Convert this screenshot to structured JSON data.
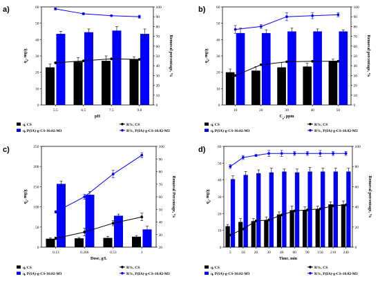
{
  "chart_data": [
    {
      "type": "bar",
      "panel": "a)",
      "categories": [
        "5.5",
        "6.5",
        "7.5",
        "9.8"
      ],
      "xlabel": "pH",
      "ylabel": "q_e, mg/g",
      "ylabel_right": "Removal percentage, %",
      "ylim": [
        0,
        60
      ],
      "ylim_right": [
        0,
        100
      ],
      "yticks": [
        "0",
        "10",
        "20",
        "30",
        "40",
        "50",
        "60"
      ],
      "yticks_right": [
        "0",
        "10",
        "20",
        "30",
        "40",
        "50",
        "60",
        "70",
        "80",
        "90",
        "100"
      ],
      "series": [
        {
          "name": "q, CS",
          "kind": "bar",
          "color": "#000000",
          "axis": "left",
          "values": [
            23,
            26.5,
            27,
            28
          ],
          "errors": [
            2,
            2.5,
            3,
            1.5
          ]
        },
        {
          "name": "q, P(IA)-g-CS-10.02-M3",
          "kind": "bar",
          "color": "#0000ff",
          "axis": "left",
          "values": [
            43.5,
            44.5,
            45.5,
            43.5
          ],
          "errors": [
            1.5,
            2,
            2.5,
            3
          ]
        },
        {
          "name": "R%, CS",
          "kind": "line",
          "color": "#000000",
          "axis": "right",
          "values": [
            43,
            45,
            47,
            46.5
          ]
        },
        {
          "name": "R%, P(IA)-g-CS-10.02-M3",
          "kind": "line",
          "color": "#0000ff",
          "axis": "right",
          "values": [
            98,
            93,
            91,
            90
          ],
          "errors": [
            1,
            1,
            0.5,
            1.5
          ]
        }
      ],
      "legend": [
        "q, CS",
        "R%, CS",
        "q, P(IA)-g-CS-10.02-M3",
        "R%, P(IA)-g-CS-10.02-M3"
      ],
      "legend_position": "bottom"
    },
    {
      "type": "bar",
      "panel": "b)",
      "categories": [
        "10",
        "20",
        "30",
        "40",
        "50"
      ],
      "xlabel": "C_e, ppm",
      "ylabel": "q_e, mg/g",
      "ylabel_right": "Removal percentage, %",
      "ylim": [
        0,
        60
      ],
      "ylim_right": [
        0,
        100
      ],
      "yticks": [
        "0",
        "10",
        "20",
        "30",
        "40",
        "50",
        "60"
      ],
      "yticks_right": [
        "0",
        "10",
        "20",
        "30",
        "40",
        "50",
        "60",
        "70",
        "80",
        "90",
        "100"
      ],
      "series": [
        {
          "name": "q, CS",
          "kind": "bar",
          "color": "#000000",
          "axis": "left",
          "values": [
            20,
            21,
            23,
            23.5,
            27
          ],
          "errors": [
            2,
            2.5,
            3,
            2,
            1
          ]
        },
        {
          "name": "q, P(IA)-g-CS-10.02-M3",
          "kind": "bar",
          "color": "#0000ff",
          "axis": "left",
          "values": [
            44,
            44,
            45,
            45,
            45
          ],
          "errors": [
            3,
            2,
            2,
            1.5,
            1
          ]
        },
        {
          "name": "R%, CS",
          "kind": "line",
          "color": "#000000",
          "axis": "right",
          "values": [
            30,
            41,
            44,
            44.5,
            44.5
          ]
        },
        {
          "name": "R%, P(IA)-g-CS-10.02-M3",
          "kind": "line",
          "color": "#0000ff",
          "axis": "right",
          "values": [
            77,
            80,
            90,
            91,
            92
          ],
          "errors": [
            4,
            2,
            4,
            3,
            2
          ]
        }
      ],
      "legend": [
        "q, CS",
        "R%, CS",
        "q, P(IA)-g-CS-10.02-M3",
        "R%, P(IA)-g-CS-10.02-M3"
      ],
      "legend_position": "bottom"
    },
    {
      "type": "bar",
      "panel": "c)",
      "categories": [
        "0.13",
        "0.266",
        "0.53",
        "1"
      ],
      "xlabel": "Dose, g/L",
      "ylabel": "q_e, mg/g",
      "ylabel_right": "Removal Percentage, %",
      "ylim": [
        0,
        250
      ],
      "ylim_right": [
        20,
        100
      ],
      "yticks": [
        "0",
        "50",
        "100",
        "150",
        "200",
        "250"
      ],
      "yticks_right": [
        "20",
        "30",
        "40",
        "50",
        "60",
        "70",
        "80",
        "90",
        "100"
      ],
      "series": [
        {
          "name": "q, CS",
          "kind": "bar",
          "color": "#000000",
          "axis": "left",
          "values": [
            21,
            22,
            23,
            26
          ],
          "errors": [
            2,
            2,
            4,
            3
          ]
        },
        {
          "name": "q, P(IA)-g-CS-10.02-M3",
          "kind": "bar",
          "color": "#0000ff",
          "axis": "left",
          "values": [
            157,
            130,
            78,
            44
          ],
          "errors": [
            7,
            8,
            4,
            8
          ]
        },
        {
          "name": "R%, CS",
          "kind": "line",
          "color": "#000000",
          "axis": "right",
          "values": [
            27,
            32,
            39,
            44
          ],
          "errors": [
            1,
            3,
            2,
            3
          ]
        },
        {
          "name": "R%, P(IA)-g-CS-10.02-M3",
          "kind": "line",
          "color": "#0000ff",
          "axis": "right",
          "values": [
            48,
            60,
            78,
            93
          ],
          "errors": [
            1,
            2,
            3,
            2
          ]
        }
      ],
      "legend": [
        "q, CS",
        "R%, CS",
        "q, P(IA)-g-CS-10.02-M3",
        "R%, P(IA)-g-CS-10.02-M3"
      ],
      "legend_position": "bottom"
    },
    {
      "type": "bar",
      "panel": "d)",
      "categories": [
        "5",
        "10",
        "20",
        "30",
        "40",
        "60",
        "90",
        "150",
        "210",
        "240"
      ],
      "xlabel": "Time, min",
      "ylabel": "q_e, mg/g",
      "ylabel_right": "Removal percentage, %",
      "ylim": [
        0,
        60
      ],
      "ylim_right": [
        0,
        100
      ],
      "yticks": [
        "0",
        "10",
        "20",
        "30",
        "40",
        "50",
        "60"
      ],
      "yticks_right": [
        "0",
        "20",
        "40",
        "60",
        "80",
        "100"
      ],
      "series": [
        {
          "name": "q, CS",
          "kind": "bar",
          "color": "#000000",
          "axis": "left",
          "values": [
            12.5,
            15,
            15.5,
            16,
            19.5,
            22,
            22,
            22.5,
            25.5,
            25.5
          ],
          "errors": [
            1,
            2,
            1.5,
            2,
            1.5,
            2.5,
            2,
            2,
            1.5,
            2
          ]
        },
        {
          "name": "q, P(IA)-g-CS-10.02-M3",
          "kind": "bar",
          "color": "#0000ff",
          "axis": "left",
          "values": [
            40.5,
            43,
            44,
            44.5,
            45,
            44.5,
            45,
            45,
            45,
            45
          ],
          "errors": [
            2,
            2,
            2,
            2.5,
            1.5,
            2,
            2.5,
            2,
            2,
            2
          ]
        },
        {
          "name": "R%, CS",
          "kind": "line",
          "color": "#000000",
          "axis": "right",
          "values": [
            12,
            18,
            26,
            27,
            32,
            36,
            37,
            38,
            41,
            42
          ]
        },
        {
          "name": "R%, P(IA)-g-CS-10.02-M3",
          "kind": "line",
          "color": "#0000ff",
          "axis": "right",
          "values": [
            80,
            89,
            91,
            93,
            93,
            93,
            93,
            93,
            93,
            93
          ],
          "errors": [
            2,
            2,
            1,
            3,
            3,
            2,
            2,
            3,
            2,
            2
          ]
        }
      ],
      "legend": [
        "q, CS",
        "R%, CS",
        "q, P(IA)-g-CS-10.02-M3",
        "R%, P(IA)-g-CS-10.02-M3"
      ],
      "legend_position": "bottom"
    }
  ]
}
